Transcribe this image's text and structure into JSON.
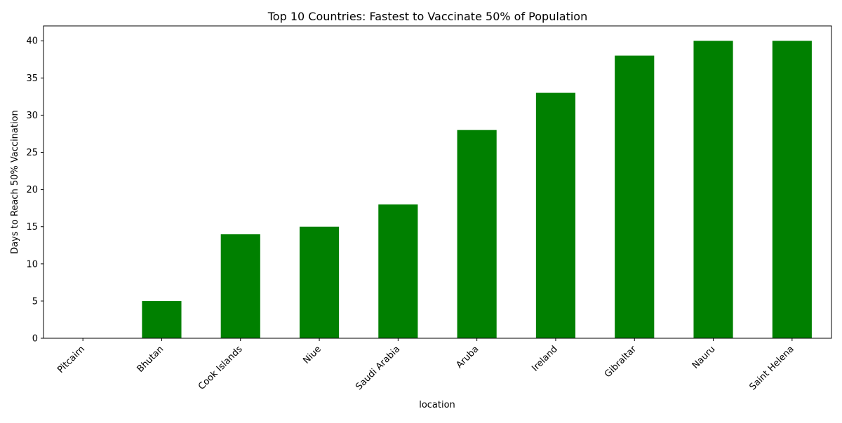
{
  "chart_data": {
    "type": "bar",
    "title": "Top 10 Countries: Fastest to Vaccinate 50% of Population",
    "xlabel": "location",
    "ylabel": "Days to Reach 50% Vaccination",
    "categories": [
      "Pitcairn",
      "Bhutan",
      "Cook Islands",
      "Niue",
      "Saudi Arabia",
      "Aruba",
      "Ireland",
      "Gibraltar",
      "Nauru",
      "Saint Helena"
    ],
    "values": [
      0,
      5,
      14,
      15,
      18,
      28,
      33,
      38,
      40,
      40
    ],
    "ylim": [
      0,
      42
    ],
    "yticks": [
      0,
      5,
      10,
      15,
      20,
      25,
      30,
      35,
      40
    ],
    "bar_color": "#008000",
    "grid": false,
    "legend": "none"
  }
}
